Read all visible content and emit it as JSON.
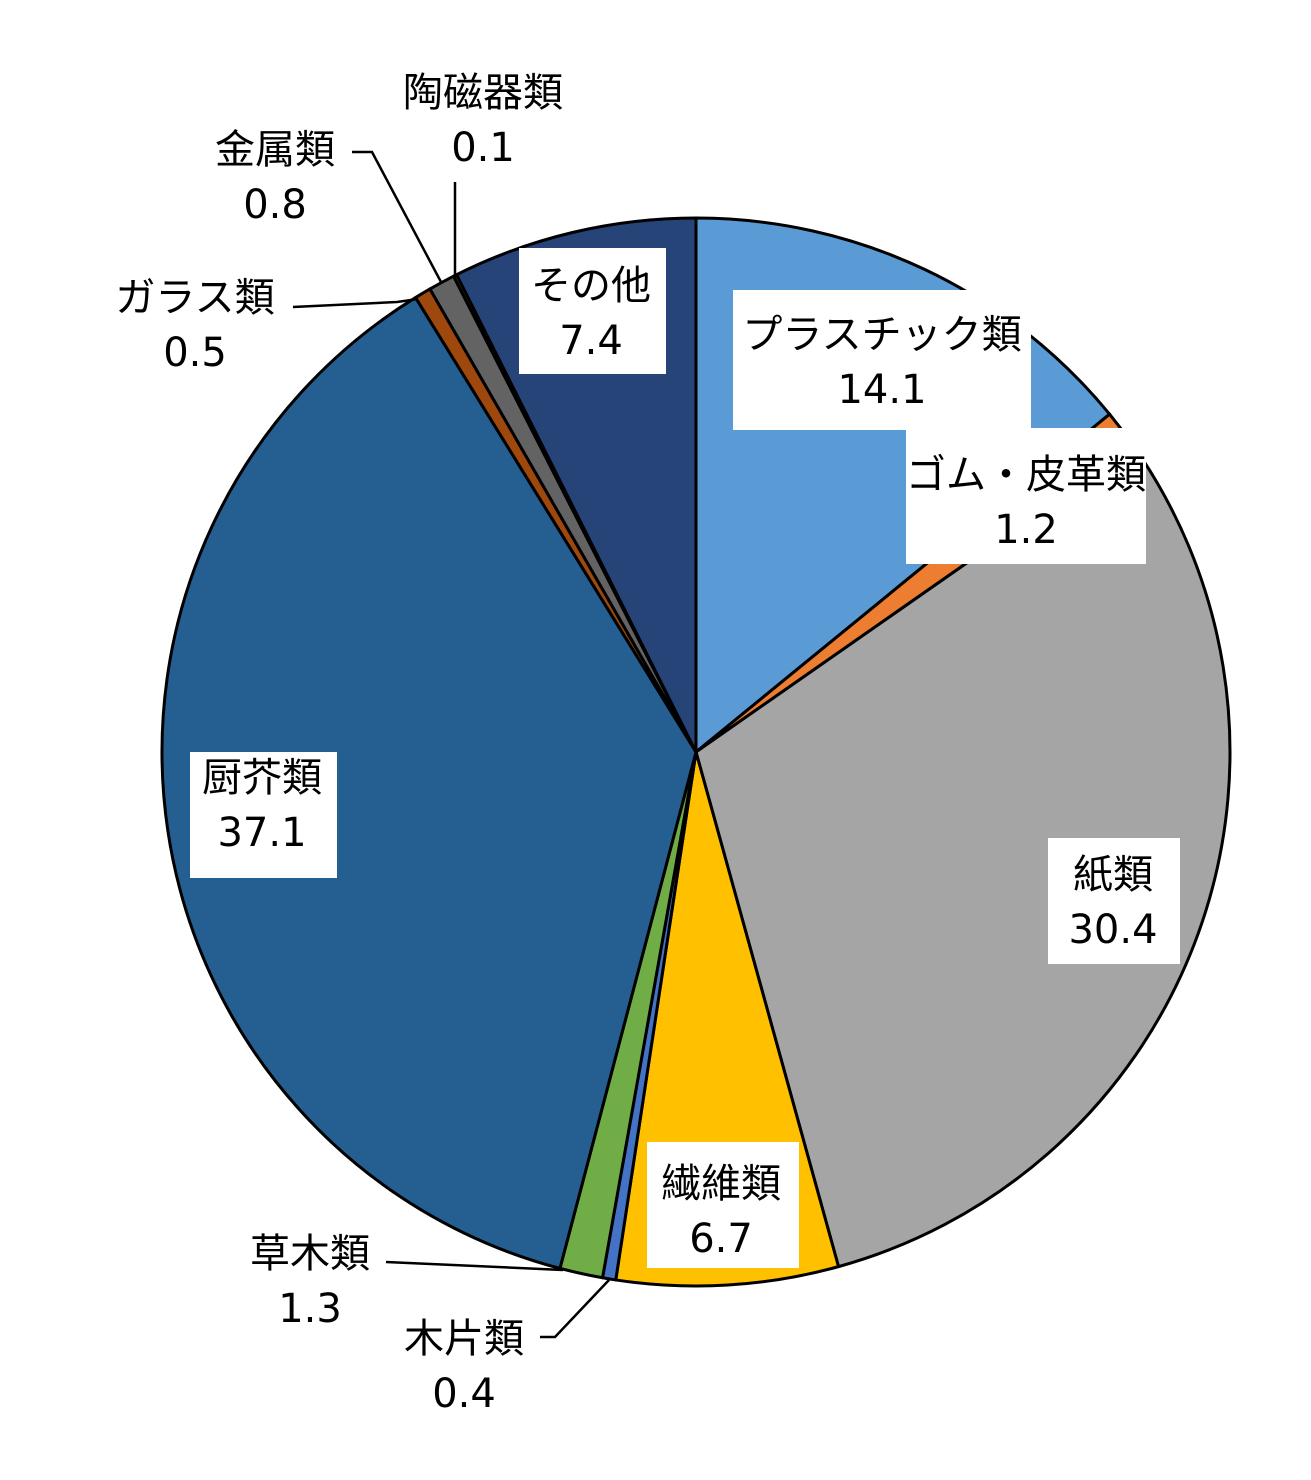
{
  "chart_data": {
    "type": "pie",
    "title": "",
    "start_angle_deg": 0,
    "direction": "clockwise",
    "slices": [
      {
        "name": "プラスチック類",
        "value_label": "14.1",
        "value": 14.1,
        "color": "#5B9BD5"
      },
      {
        "name": "ゴム・皮革類",
        "value_label": "1.2",
        "value": 1.2,
        "color": "#ED7D31"
      },
      {
        "name": "紙類",
        "value_label": "30.4",
        "value": 30.4,
        "color": "#A5A5A5"
      },
      {
        "name": "繊維類",
        "value_label": "6.7",
        "value": 6.7,
        "color": "#FFC000"
      },
      {
        "name": "木片類",
        "value_label": "0.4",
        "value": 0.4,
        "color": "#4472C4"
      },
      {
        "name": "草木類",
        "value_label": "1.3",
        "value": 1.3,
        "color": "#70AD47"
      },
      {
        "name": "厨芥類",
        "value_label": "37.1",
        "value": 37.1,
        "color": "#255E91"
      },
      {
        "name": "ガラス類",
        "value_label": "0.5",
        "value": 0.5,
        "color": "#9E480E"
      },
      {
        "name": "金属類",
        "value_label": "0.8",
        "value": 0.8,
        "color": "#636363"
      },
      {
        "name": "陶磁器類",
        "value_label": "0.1",
        "value": 0.1,
        "color": "#997300"
      },
      {
        "name": "その他",
        "value_label": "7.4",
        "value": 7.4,
        "color": "#264478"
      }
    ]
  }
}
